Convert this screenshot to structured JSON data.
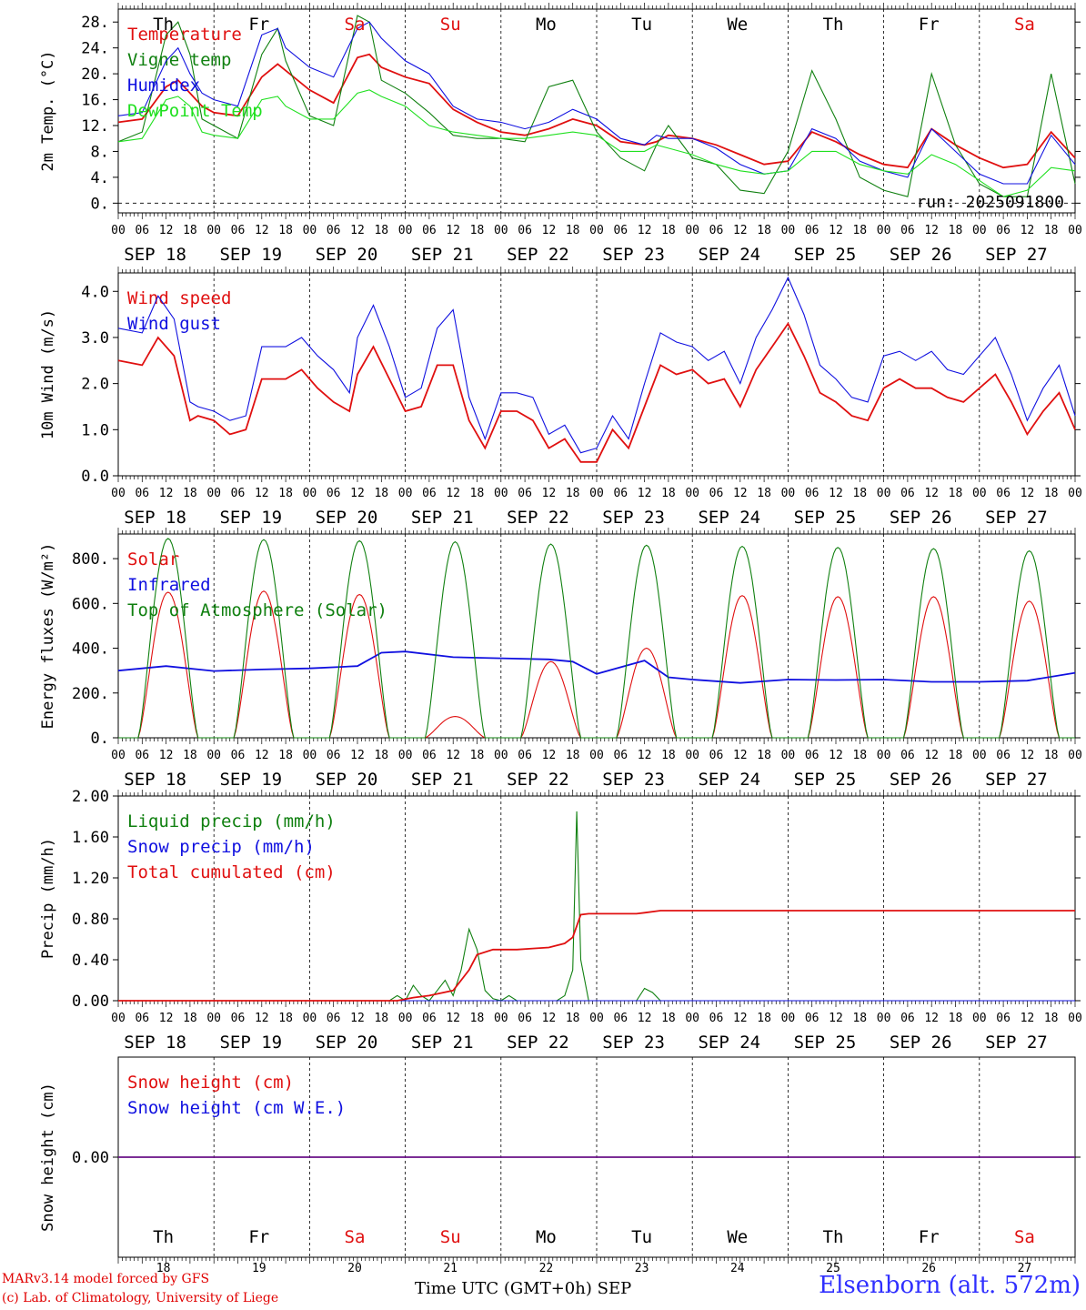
{
  "credits": {
    "line1": "MARv3.14 model forced by GFS",
    "line2": "(c) Lab. of Climatology, University of Liege"
  },
  "station": "Elsenborn (alt. 572m)",
  "time_axis_label": "Time UTC (GMT+0h)",
  "month": "SEP",
  "run_label": "run: 2025091800",
  "colors": {
    "red": "#e01010",
    "green": "#108010",
    "blue": "#1010e0",
    "lime": "#20e020",
    "black": "#000000"
  },
  "days": {
    "weekdays": [
      "Th",
      "Fr",
      "Sa",
      "Su",
      "Mo",
      "Tu",
      "We",
      "Th",
      "Fr",
      "Sa"
    ],
    "weekend_flags": [
      false,
      false,
      true,
      true,
      false,
      false,
      false,
      false,
      false,
      true
    ],
    "dates": [
      "SEP 18",
      "SEP 19",
      "SEP 20",
      "SEP 21",
      "SEP 22",
      "SEP 23",
      "SEP 24",
      "SEP 25",
      "SEP 26",
      "SEP 27"
    ],
    "day_numbers": [
      "18",
      "19",
      "20",
      "21",
      "22",
      "23",
      "24",
      "25",
      "26",
      "27"
    ],
    "hour_ticks": [
      "00",
      "06",
      "12",
      "18"
    ],
    "final_tick": "00"
  },
  "chart_data": [
    {
      "id": "temp",
      "type": "line",
      "ylabel": "2m Temp. (°C)",
      "ylim": [
        -1.5,
        30
      ],
      "yticks": [
        "0.",
        "4.",
        "8.",
        "12.",
        "16.",
        "20.",
        "24.",
        "28."
      ],
      "ytick_values": [
        0,
        4,
        8,
        12,
        16,
        20,
        24,
        28
      ],
      "x_unit": "hours since SEP 18 00 UTC",
      "xlim": [
        0,
        240
      ],
      "zero_line_dashed": true,
      "series": [
        {
          "name": "Temperature",
          "color": "red",
          "x": [
            0,
            6,
            12,
            15,
            18,
            21,
            24,
            30,
            36,
            40,
            42,
            48,
            54,
            60,
            63,
            66,
            72,
            78,
            84,
            90,
            96,
            102,
            108,
            114,
            120,
            126,
            132,
            135,
            138,
            144,
            150,
            156,
            162,
            168,
            174,
            180,
            186,
            192,
            198,
            204,
            210,
            216,
            222,
            228,
            234,
            240
          ],
          "y": [
            12.5,
            13,
            18,
            19,
            17,
            15,
            14,
            13.5,
            19.5,
            21.5,
            20.5,
            17.5,
            15.5,
            22.5,
            23,
            21,
            19.5,
            18.5,
            14.5,
            12.5,
            11,
            10.5,
            11.5,
            13,
            12,
            9.5,
            9,
            9.5,
            10.5,
            10,
            9,
            7.5,
            6,
            6.5,
            11,
            9.5,
            7.5,
            6,
            5.5,
            11.5,
            9,
            7,
            5.5,
            6,
            11,
            7
          ]
        },
        {
          "name": "Vigne temp",
          "color": "green",
          "x": [
            0,
            6,
            12,
            15,
            18,
            21,
            24,
            30,
            36,
            40,
            42,
            48,
            54,
            60,
            63,
            66,
            72,
            78,
            84,
            90,
            96,
            102,
            108,
            114,
            120,
            126,
            132,
            135,
            138,
            144,
            150,
            156,
            162,
            168,
            174,
            180,
            186,
            192,
            198,
            204,
            210,
            216,
            222,
            228,
            234,
            240
          ],
          "y": [
            9.5,
            11,
            26,
            28,
            23,
            13,
            12,
            10,
            23,
            27,
            22,
            13.5,
            12,
            29,
            28,
            19,
            17,
            14,
            10.5,
            10,
            10,
            9.5,
            18,
            19,
            11,
            7,
            5,
            9,
            12,
            7,
            6,
            2,
            1.5,
            8,
            20.5,
            13,
            4,
            2,
            1,
            20,
            9,
            3,
            1,
            1,
            20,
            3
          ]
        },
        {
          "name": "Humidex",
          "color": "blue",
          "x": [
            0,
            6,
            12,
            15,
            18,
            21,
            24,
            30,
            36,
            40,
            42,
            48,
            54,
            60,
            63,
            66,
            72,
            78,
            84,
            90,
            96,
            102,
            108,
            114,
            120,
            126,
            132,
            135,
            138,
            144,
            150,
            156,
            162,
            168,
            174,
            180,
            186,
            192,
            198,
            204,
            210,
            216,
            222,
            228,
            234,
            240
          ],
          "y": [
            13.5,
            14,
            22,
            24,
            20,
            17,
            16,
            15,
            26,
            27,
            24,
            21,
            19.5,
            27,
            28,
            25.5,
            22,
            20,
            15,
            13,
            12.5,
            11.5,
            12.5,
            14.5,
            13,
            10,
            9,
            10.5,
            10,
            10,
            8.5,
            6,
            4.5,
            5,
            11.5,
            10,
            6.5,
            5,
            4,
            11.5,
            8,
            4.5,
            3,
            3,
            10.5,
            6
          ]
        },
        {
          "name": "DewPoint Temp",
          "color": "lime",
          "x": [
            0,
            6,
            12,
            15,
            18,
            21,
            24,
            30,
            36,
            40,
            42,
            48,
            54,
            60,
            63,
            66,
            72,
            78,
            84,
            90,
            96,
            102,
            108,
            114,
            120,
            126,
            132,
            135,
            138,
            144,
            150,
            156,
            162,
            168,
            174,
            180,
            186,
            192,
            198,
            204,
            210,
            216,
            222,
            228,
            234,
            240
          ],
          "y": [
            9.5,
            10,
            16,
            16.5,
            15,
            11,
            10.5,
            10,
            16,
            16.5,
            15,
            13,
            13,
            17,
            17.5,
            16.5,
            15,
            12,
            11,
            10.5,
            10,
            10,
            10.5,
            11,
            10.5,
            8,
            8,
            9,
            8.5,
            7.5,
            6,
            5,
            4.5,
            5,
            8,
            8,
            6,
            5,
            4.5,
            7.5,
            6,
            3.5,
            1,
            2,
            5.5,
            5
          ]
        }
      ]
    },
    {
      "id": "wind",
      "type": "line",
      "ylabel": "10m Wind (m/s)",
      "ylim": [
        0,
        4.4
      ],
      "yticks": [
        "0.0",
        "1.0",
        "2.0",
        "3.0",
        "4.0"
      ],
      "ytick_values": [
        0,
        1,
        2,
        3,
        4
      ],
      "xlim": [
        0,
        240
      ],
      "series": [
        {
          "name": "Wind speed",
          "color": "red",
          "x": [
            0,
            6,
            10,
            14,
            18,
            20,
            24,
            28,
            32,
            36,
            42,
            46,
            50,
            54,
            58,
            60,
            64,
            68,
            72,
            76,
            80,
            84,
            88,
            92,
            96,
            100,
            104,
            108,
            112,
            116,
            120,
            124,
            128,
            132,
            136,
            140,
            144,
            148,
            152,
            156,
            160,
            164,
            168,
            172,
            176,
            180,
            184,
            188,
            192,
            196,
            200,
            204,
            208,
            212,
            216,
            220,
            224,
            228,
            232,
            236,
            240
          ],
          "y": [
            2.5,
            2.4,
            3.0,
            2.6,
            1.2,
            1.3,
            1.2,
            0.9,
            1.0,
            2.1,
            2.1,
            2.3,
            1.9,
            1.6,
            1.4,
            2.2,
            2.8,
            2.1,
            1.4,
            1.5,
            2.4,
            2.4,
            1.2,
            0.6,
            1.4,
            1.4,
            1.2,
            0.6,
            0.8,
            0.3,
            0.3,
            1.0,
            0.6,
            1.5,
            2.4,
            2.2,
            2.3,
            2.0,
            2.1,
            1.5,
            2.3,
            2.8,
            3.3,
            2.6,
            1.8,
            1.6,
            1.3,
            1.2,
            1.9,
            2.1,
            1.9,
            1.9,
            1.7,
            1.6,
            1.9,
            2.2,
            1.6,
            0.9,
            1.4,
            1.8,
            1.0
          ]
        },
        {
          "name": "Wind gust",
          "color": "blue",
          "x": [
            0,
            6,
            10,
            14,
            18,
            20,
            24,
            28,
            32,
            36,
            42,
            46,
            50,
            54,
            58,
            60,
            64,
            68,
            72,
            76,
            80,
            84,
            88,
            92,
            96,
            100,
            104,
            108,
            112,
            116,
            120,
            124,
            128,
            132,
            136,
            140,
            144,
            148,
            152,
            156,
            160,
            164,
            168,
            172,
            176,
            180,
            184,
            188,
            192,
            196,
            200,
            204,
            208,
            212,
            216,
            220,
            224,
            228,
            232,
            236,
            240
          ],
          "y": [
            3.2,
            3.1,
            3.9,
            3.4,
            1.6,
            1.5,
            1.4,
            1.2,
            1.3,
            2.8,
            2.8,
            3.0,
            2.6,
            2.3,
            1.8,
            3.0,
            3.7,
            2.8,
            1.7,
            1.9,
            3.2,
            3.6,
            1.7,
            0.8,
            1.8,
            1.8,
            1.7,
            0.9,
            1.1,
            0.5,
            0.6,
            1.3,
            0.8,
            2.0,
            3.1,
            2.9,
            2.8,
            2.5,
            2.7,
            2.0,
            3.0,
            3.6,
            4.3,
            3.5,
            2.4,
            2.1,
            1.7,
            1.6,
            2.6,
            2.7,
            2.5,
            2.7,
            2.3,
            2.2,
            2.6,
            3.0,
            2.2,
            1.2,
            1.9,
            2.4,
            1.3
          ]
        }
      ]
    },
    {
      "id": "flux",
      "type": "line",
      "ylabel": "Energy fluxes (W/m²)",
      "ylim": [
        0,
        910
      ],
      "yticks": [
        "0.",
        "200.",
        "400.",
        "600.",
        "800."
      ],
      "ytick_values": [
        0,
        200,
        400,
        600,
        800
      ],
      "xlim": [
        0,
        240
      ],
      "solar_peaks_per_day": [
        650,
        655,
        640,
        95,
        340,
        400,
        635,
        630,
        630,
        610
      ],
      "toa_peaks_per_day": [
        890,
        885,
        880,
        875,
        865,
        860,
        855,
        850,
        845,
        835
      ],
      "series": [
        {
          "name": "Solar",
          "color": "red"
        },
        {
          "name": "Infrared",
          "color": "blue",
          "x": [
            0,
            12,
            24,
            36,
            48,
            60,
            66,
            72,
            84,
            96,
            108,
            114,
            120,
            132,
            138,
            144,
            156,
            168,
            180,
            192,
            204,
            216,
            228,
            240
          ],
          "y": [
            300,
            320,
            298,
            305,
            310,
            320,
            380,
            385,
            360,
            355,
            350,
            340,
            285,
            345,
            270,
            260,
            245,
            260,
            258,
            260,
            250,
            250,
            255,
            290
          ]
        },
        {
          "name": "Top of Atmosphere (Solar)",
          "color": "green"
        }
      ]
    },
    {
      "id": "precip",
      "type": "line",
      "ylabel": "Precip (mm/h)",
      "ylim": [
        0,
        2.0
      ],
      "yticks": [
        "0.00",
        "0.40",
        "0.80",
        "1.20",
        "1.60",
        "2.00"
      ],
      "ytick_values": [
        0,
        0.4,
        0.8,
        1.2,
        1.6,
        2.0
      ],
      "xlim": [
        0,
        240
      ],
      "series": [
        {
          "name": "Liquid precip (mm/h)",
          "color": "green",
          "x": [
            0,
            68,
            70,
            72,
            74,
            76,
            78,
            80,
            82,
            84,
            86,
            88,
            90,
            92,
            94,
            96,
            98,
            100,
            102,
            104,
            106,
            108,
            110,
            112,
            114,
            115,
            116,
            118,
            120,
            130,
            132,
            134,
            136,
            140,
            240
          ],
          "y": [
            0,
            0,
            0.05,
            0,
            0.15,
            0.05,
            0,
            0.1,
            0.2,
            0.05,
            0.3,
            0.7,
            0.5,
            0.1,
            0.02,
            0,
            0.05,
            0,
            0,
            0,
            0,
            0,
            0,
            0.05,
            0.3,
            1.85,
            0.4,
            0,
            0,
            0,
            0.12,
            0.08,
            0,
            0,
            0
          ]
        },
        {
          "name": "Snow precip (mm/h)",
          "color": "blue",
          "x": [
            0,
            240
          ],
          "y": [
            0,
            0
          ]
        },
        {
          "name": "Total cumulated (cm)",
          "color": "red",
          "x": [
            0,
            70,
            74,
            78,
            84,
            88,
            90,
            94,
            100,
            104,
            108,
            112,
            114,
            116,
            118,
            130,
            132,
            136,
            140,
            240
          ],
          "y": [
            0,
            0,
            0.03,
            0.05,
            0.1,
            0.3,
            0.45,
            0.5,
            0.5,
            0.51,
            0.52,
            0.56,
            0.62,
            0.84,
            0.85,
            0.85,
            0.86,
            0.88,
            0.88,
            0.88
          ]
        }
      ]
    },
    {
      "id": "snow",
      "type": "line",
      "ylabel": "Snow height (cm)",
      "ylim": [
        -1,
        1
      ],
      "yticks": [
        "0.00"
      ],
      "ytick_values": [
        0
      ],
      "xlim": [
        0,
        240
      ],
      "series": [
        {
          "name": "Snow height (cm)",
          "color": "red",
          "x": [
            0,
            240
          ],
          "y": [
            0,
            0
          ]
        },
        {
          "name": "Snow height (cm W.E.)",
          "color": "blue",
          "x": [
            0,
            240
          ],
          "y": [
            0,
            0
          ]
        }
      ]
    }
  ]
}
